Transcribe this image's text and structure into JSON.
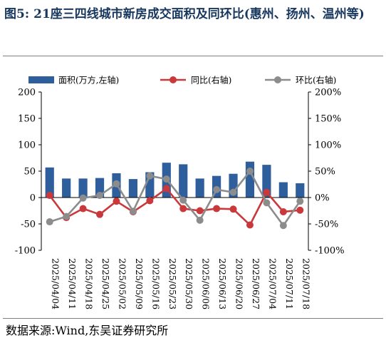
{
  "header": {
    "figure_label": "图5:",
    "title": "21座三四线城市新房成交面积及同环比(惠州、扬州、温州等)"
  },
  "footer": {
    "source": "数据来源:Wind,东吴证券研究所"
  },
  "colors": {
    "bar": "#2e5f9c",
    "yoy": "#c9393b",
    "mom": "#8c8c8c"
  },
  "chart_data": {
    "type": "bar",
    "categories": [
      "2025/04/04",
      "2025/04/11",
      "2025/04/18",
      "2025/04/25",
      "2025/05/02",
      "2025/05/09",
      "2025/05/16",
      "2025/05/23",
      "2025/05/30",
      "2025/06/06",
      "2025/06/13",
      "2025/06/20",
      "2025/06/27",
      "2025/07/04",
      "2025/07/11",
      "2025/07/18"
    ],
    "series": [
      {
        "name": "面积(万方,左轴)",
        "type": "bar",
        "axis": "left",
        "values": [
          57,
          36,
          36,
          37,
          46,
          35,
          48,
          66,
          63,
          36,
          41,
          45,
          68,
          62,
          29,
          27
        ]
      },
      {
        "name": "同比(右轴)",
        "type": "line",
        "axis": "right",
        "values": [
          4,
          -38,
          -21,
          -32,
          -7,
          -27,
          -6,
          17,
          -21,
          -25,
          -21,
          -22,
          -52,
          10,
          -27,
          -24
        ]
      },
      {
        "name": "环比(右轴)",
        "type": "line",
        "axis": "right",
        "values": [
          -46,
          -36,
          -1,
          4,
          26,
          -26,
          41,
          35,
          -5,
          -43,
          15,
          10,
          50,
          -10,
          -53,
          -7
        ]
      }
    ],
    "y_left": {
      "min": -100,
      "max": 200,
      "ticks": [
        -100,
        -50,
        0,
        50,
        100,
        150,
        200
      ]
    },
    "y_right": {
      "min": -100,
      "max": 200,
      "ticks": [
        "-100%",
        "-50%",
        "0%",
        "50%",
        "100%",
        "150%",
        "200%"
      ]
    },
    "legend_placement": "top",
    "grid": false
  }
}
